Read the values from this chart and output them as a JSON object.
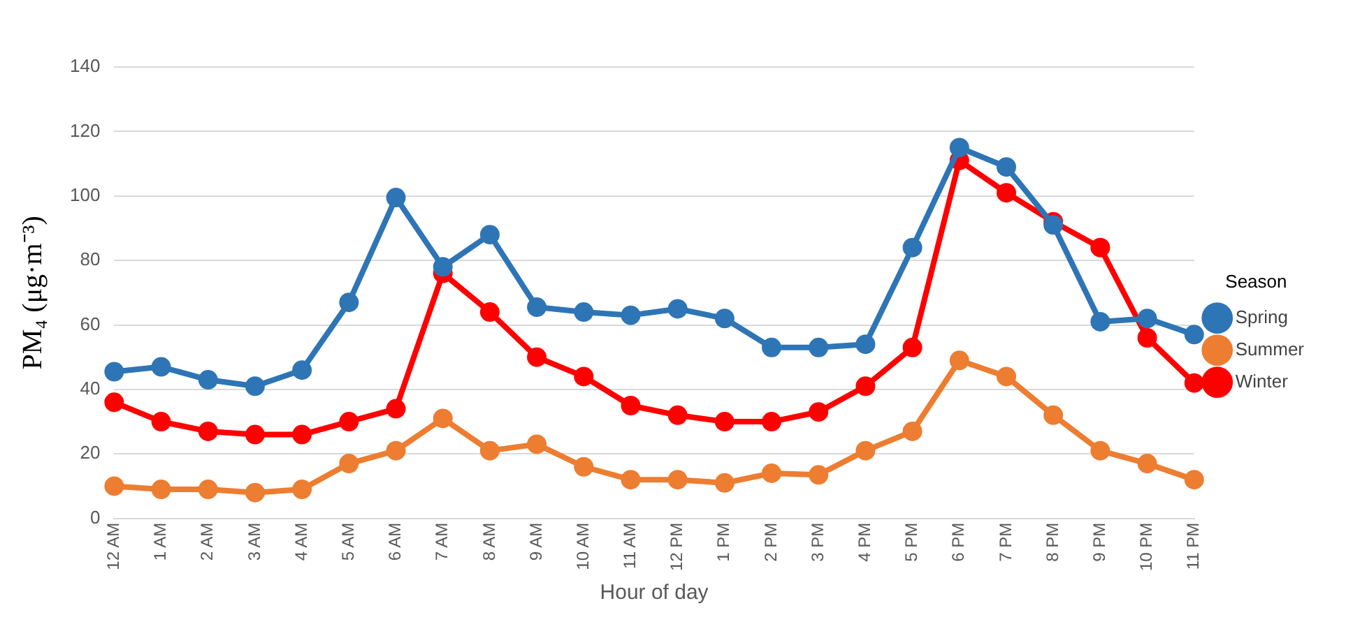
{
  "chart_data": {
    "type": "line",
    "xlabel": "Hour of day",
    "ylabel": "PM₄ (μg·m⁻³)",
    "legend_title": "Season",
    "categories": [
      "12 AM",
      "1 AM",
      "2 AM",
      "3 AM",
      "4 AM",
      "5 AM",
      "6 AM",
      "7 AM",
      "8 AM",
      "9 AM",
      "10 AM",
      "11 AM",
      "12 PM",
      "1 PM",
      "2 PM",
      "3 PM",
      "4 PM",
      "5 PM",
      "6 PM",
      "7 PM",
      "8 PM",
      "9 PM",
      "10 PM",
      "11 PM"
    ],
    "series": [
      {
        "name": "Spring",
        "color": "#2e75b6",
        "values": [
          45.5,
          47,
          43,
          41,
          46,
          67,
          99.5,
          78,
          88,
          65.5,
          64,
          63,
          65,
          62,
          53,
          53,
          54,
          84,
          115,
          109,
          91,
          61,
          62,
          57
        ]
      },
      {
        "name": "Summer",
        "color": "#ed7d31",
        "values": [
          10,
          9,
          9,
          8,
          9,
          17,
          21,
          31,
          21,
          23,
          16,
          12,
          12,
          11,
          14,
          13.5,
          21,
          27,
          49,
          44,
          32,
          21,
          17,
          12
        ]
      },
      {
        "name": "Winter",
        "color": "#ff0000",
        "values": [
          36,
          30,
          27,
          26,
          26,
          30,
          34,
          76,
          64,
          50,
          44,
          35,
          32,
          30,
          30,
          33,
          41,
          53,
          111,
          101,
          92,
          84,
          56,
          42
        ]
      }
    ],
    "ylim": [
      0,
      140
    ],
    "yticks": [
      0,
      20,
      40,
      60,
      80,
      100,
      120,
      140
    ],
    "grid": "y",
    "legend": "right",
    "marker": "circle",
    "line_style": "solid"
  }
}
